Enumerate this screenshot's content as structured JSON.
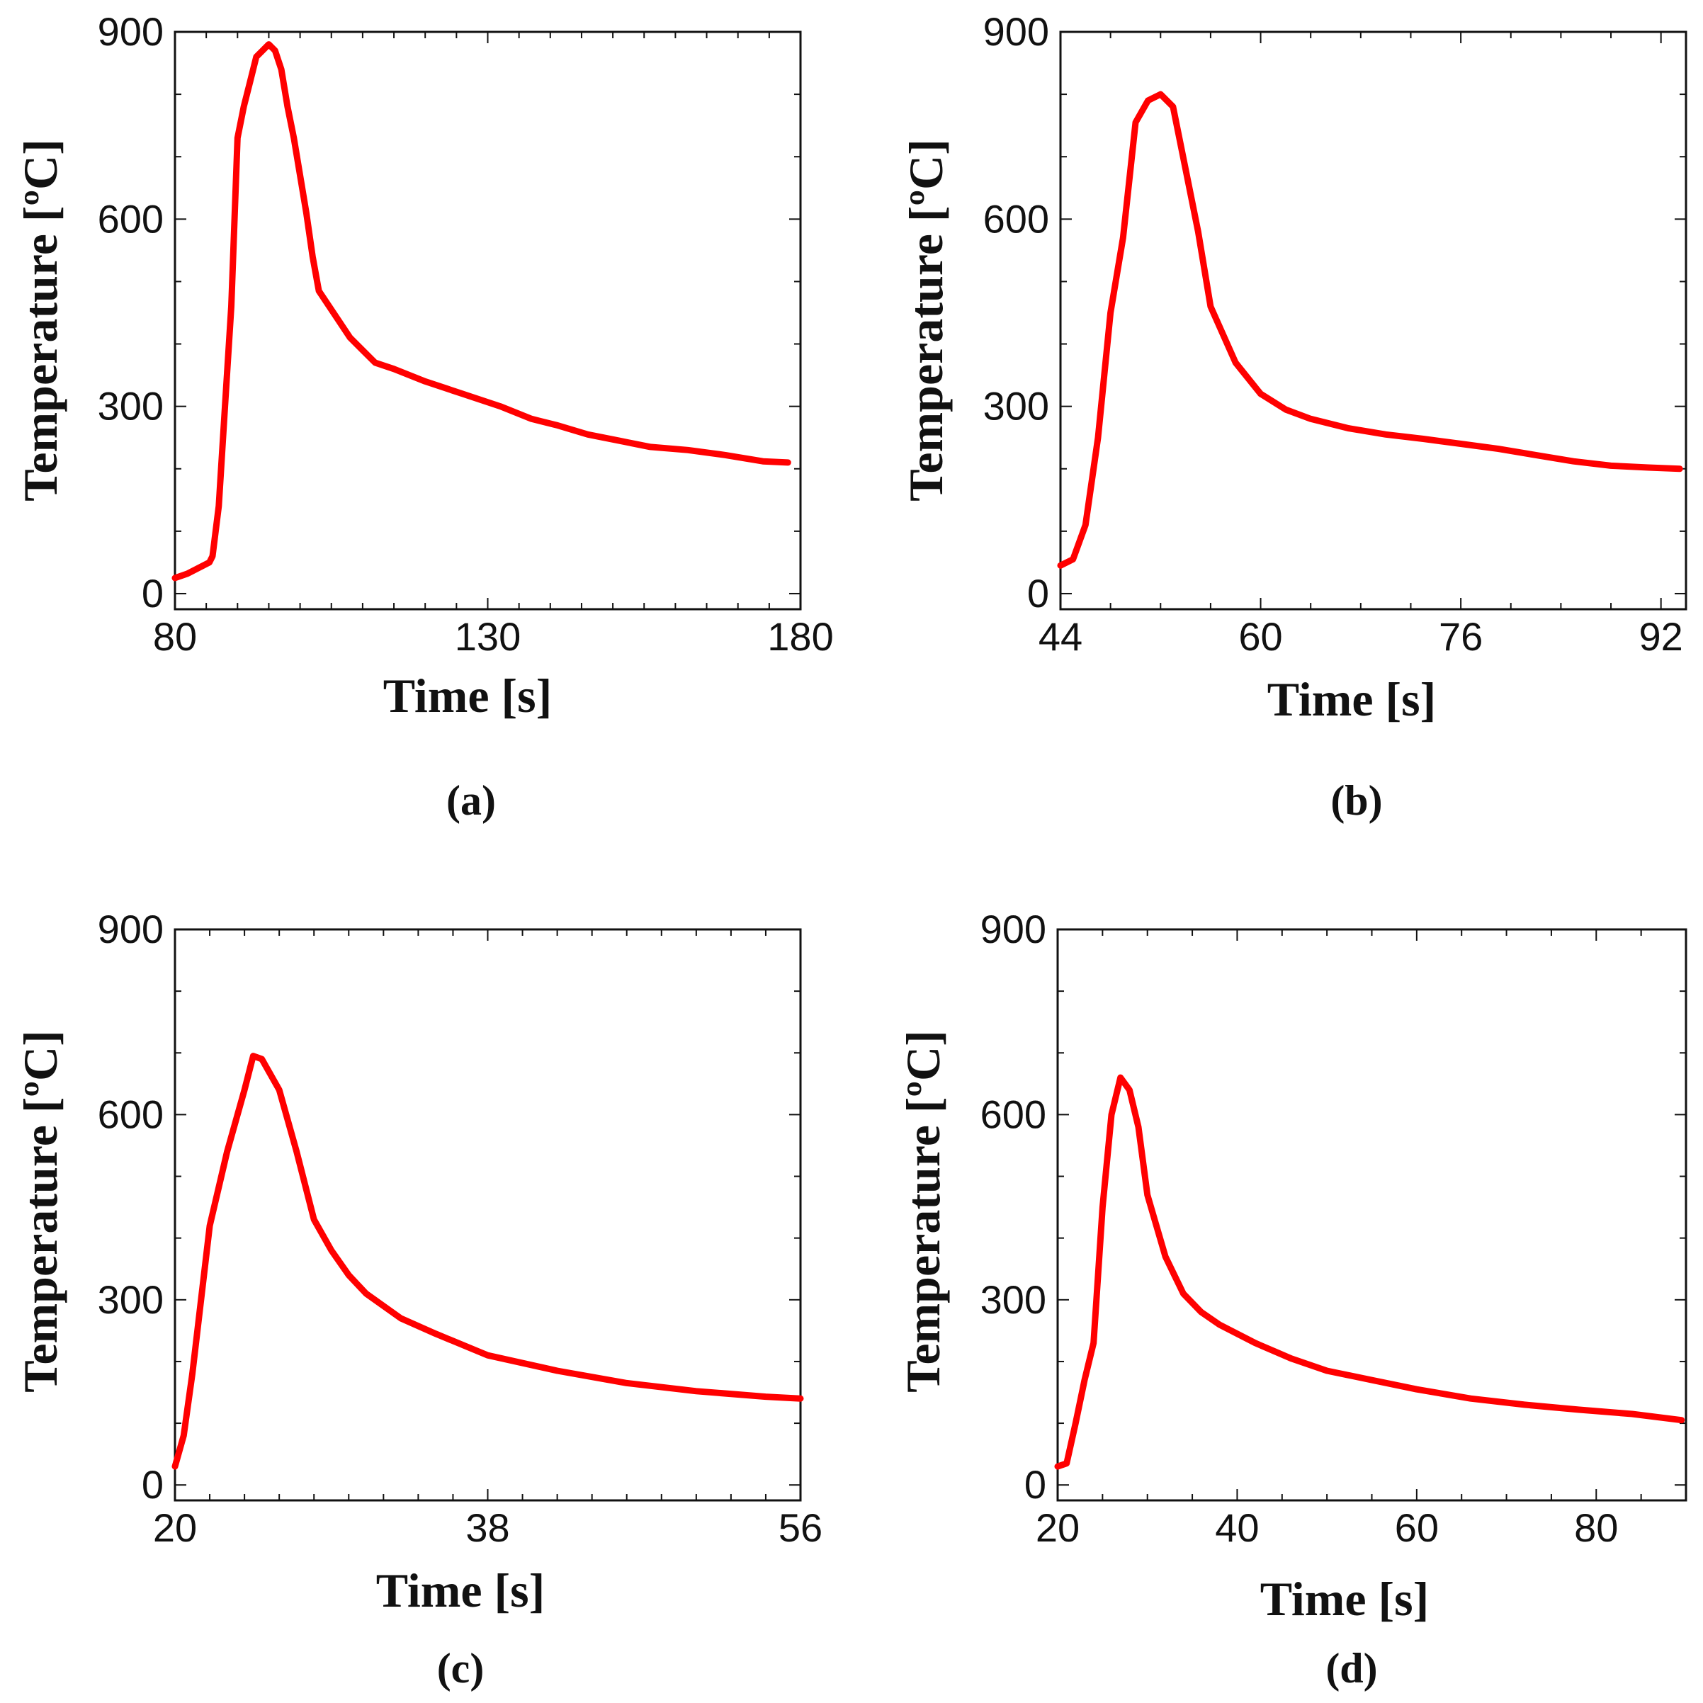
{
  "figure": {
    "panels": [
      "(a)",
      "(b)",
      "(c)",
      "(d)"
    ]
  },
  "chart_data": [
    {
      "type": "line",
      "panel_label": "(a)",
      "xlabel": "Time [s]",
      "ylabel": "Temperature [ºC]",
      "xlim": [
        80,
        180
      ],
      "ylim": [
        -25,
        900
      ],
      "xticks": [
        80,
        130,
        180
      ],
      "yticks": [
        0,
        300,
        600,
        900
      ],
      "xminor": [
        85,
        90,
        95,
        100,
        105,
        110,
        115,
        120,
        125,
        135,
        140,
        145,
        150,
        155,
        160,
        165,
        170,
        175
      ],
      "yminor": [
        100,
        200,
        400,
        500,
        700,
        800
      ],
      "color": "#ff0000",
      "x": [
        80,
        82,
        85.5,
        86,
        87,
        88,
        89,
        90,
        91,
        92,
        93,
        94,
        95,
        96,
        97,
        98,
        99,
        100,
        101,
        102,
        103,
        105,
        108,
        112,
        115,
        120,
        126,
        132,
        137,
        141,
        146,
        151,
        156,
        162,
        168,
        174,
        178
      ],
      "y": [
        25,
        32,
        50,
        60,
        140,
        300,
        460,
        730,
        780,
        820,
        860,
        870,
        880,
        870,
        840,
        780,
        730,
        670,
        610,
        540,
        485,
        455,
        410,
        370,
        360,
        340,
        320,
        300,
        280,
        270,
        255,
        245,
        235,
        230,
        222,
        212,
        210
      ]
    },
    {
      "type": "line",
      "panel_label": "(b)",
      "xlabel": "Time [s]",
      "ylabel": "Temperature [ºC]",
      "xlim": [
        44,
        94
      ],
      "ylim": [
        -25,
        900
      ],
      "xticks": [
        44,
        60,
        76,
        92
      ],
      "yticks": [
        0,
        300,
        600,
        900
      ],
      "xminor": [
        48,
        52,
        56,
        64,
        68,
        72,
        80,
        84,
        88
      ],
      "yminor": [
        100,
        200,
        400,
        500,
        700,
        800
      ],
      "color": "#ff0000",
      "x": [
        44,
        45,
        46,
        47,
        48,
        49,
        50,
        51,
        52,
        53,
        54,
        55,
        56,
        58,
        60,
        62,
        64,
        67,
        70,
        73,
        76,
        79,
        82,
        85,
        88,
        91,
        93.5
      ],
      "y": [
        45,
        55,
        110,
        250,
        450,
        570,
        755,
        790,
        800,
        780,
        680,
        580,
        460,
        370,
        320,
        295,
        280,
        265,
        255,
        248,
        240,
        232,
        222,
        212,
        205,
        202,
        200
      ]
    },
    {
      "type": "line",
      "panel_label": "(c)",
      "xlabel": "Time [s]",
      "ylabel": "Temperature [ºC]",
      "xlim": [
        20,
        56
      ],
      "ylim": [
        -25,
        900
      ],
      "xticks": [
        20,
        38,
        56
      ],
      "yticks": [
        0,
        300,
        600,
        900
      ],
      "xminor": [
        22,
        24,
        26,
        28,
        30,
        32,
        34,
        36,
        40,
        42,
        44,
        46,
        48,
        50,
        52,
        54
      ],
      "yminor": [
        100,
        200,
        400,
        500,
        700,
        800
      ],
      "color": "#ff0000",
      "x": [
        20,
        20.5,
        21,
        22,
        23,
        24,
        24.5,
        25,
        26,
        27,
        28,
        29,
        30,
        31,
        33,
        35,
        38,
        42,
        46,
        50,
        54,
        56
      ],
      "y": [
        30,
        80,
        180,
        420,
        540,
        640,
        695,
        690,
        640,
        540,
        430,
        380,
        340,
        310,
        270,
        245,
        210,
        185,
        165,
        152,
        143,
        140
      ]
    },
    {
      "type": "line",
      "panel_label": "(d)",
      "xlabel": "Time [s]",
      "ylabel": "Temperature [ºC]",
      "xlim": [
        20,
        90
      ],
      "ylim": [
        -25,
        900
      ],
      "xticks": [
        20,
        40,
        60,
        80
      ],
      "yticks": [
        0,
        300,
        600,
        900
      ],
      "xminor": [
        25,
        30,
        35,
        45,
        50,
        55,
        65,
        70,
        75,
        85
      ],
      "yminor": [
        100,
        200,
        400,
        500,
        700,
        800
      ],
      "color": "#ff0000",
      "x": [
        20,
        21,
        22,
        23,
        24,
        25,
        26,
        27,
        28,
        29,
        30,
        31,
        32,
        34,
        36,
        38,
        42,
        46,
        50,
        55,
        60,
        66,
        72,
        78,
        84,
        89.5
      ],
      "y": [
        30,
        35,
        100,
        170,
        230,
        450,
        600,
        660,
        640,
        580,
        470,
        420,
        370,
        310,
        280,
        260,
        230,
        205,
        185,
        170,
        155,
        140,
        130,
        122,
        115,
        105
      ]
    }
  ]
}
